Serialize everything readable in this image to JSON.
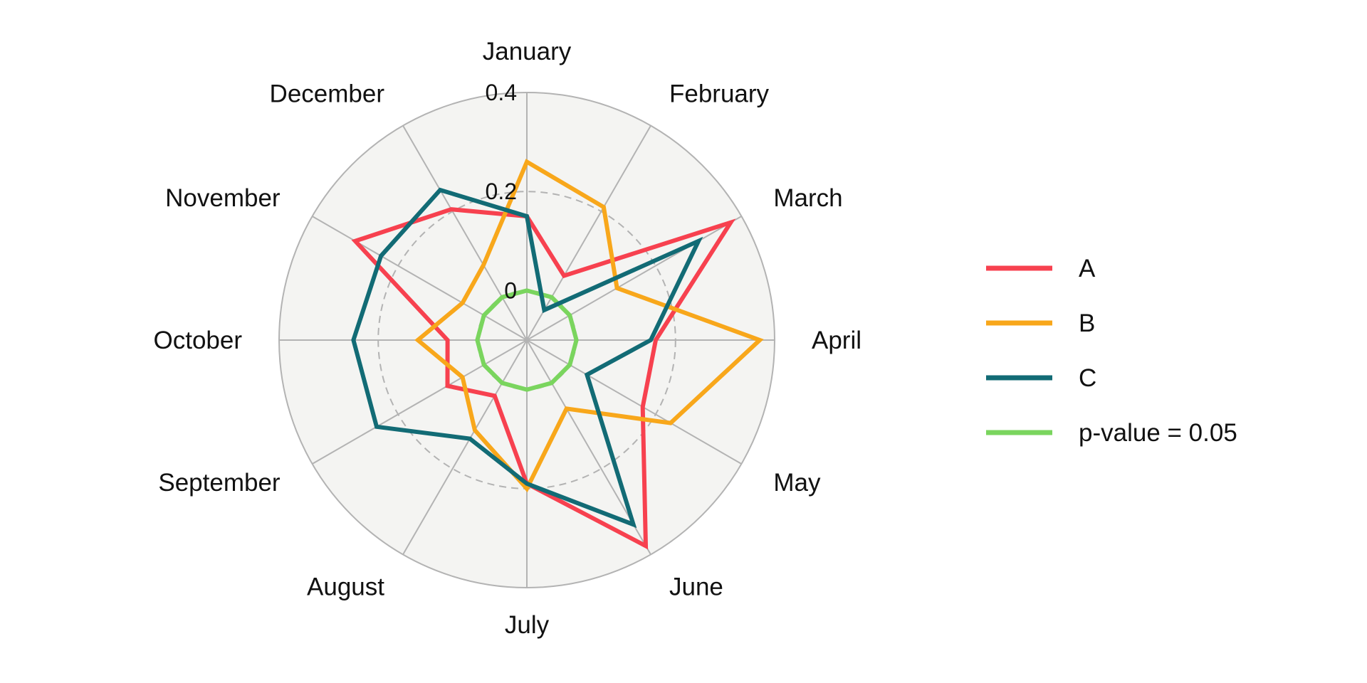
{
  "chart_data": {
    "type": "radar",
    "categories": [
      "January",
      "February",
      "March",
      "April",
      "May",
      "June",
      "July",
      "August",
      "September",
      "October",
      "November",
      "December"
    ],
    "radial_range": [
      -0.1,
      0.4
    ],
    "radial_ticks": [
      {
        "value": 0,
        "label": "0"
      },
      {
        "value": 0.2,
        "label": "0.2"
      },
      {
        "value": 0.4,
        "label": "0.4"
      }
    ],
    "series": [
      {
        "name": "A",
        "color": "#f7414f",
        "values": [
          0.15,
          0.05,
          0.375,
          0.16,
          0.17,
          0.38,
          0.19,
          0.03,
          0.085,
          0.06,
          0.3,
          0.205
        ]
      },
      {
        "name": "B",
        "color": "#f8a71b",
        "values": [
          0.26,
          0.21,
          0.11,
          0.37,
          0.235,
          0.06,
          0.2,
          0.11,
          0.05,
          0.12,
          0.05,
          0.075
        ]
      },
      {
        "name": "C",
        "color": "#126b75",
        "values": [
          0.15,
          -0.03,
          0.3,
          0.15,
          0.04,
          0.33,
          0.19,
          0.13,
          0.25,
          0.25,
          0.24,
          0.25
        ]
      },
      {
        "name": "p-value = 0.05",
        "color": "#7ad55e",
        "values": [
          0.0,
          0.0,
          0.0,
          0.0,
          0.0,
          0.0,
          0.0,
          0.0,
          0.0,
          0.0,
          0.0,
          0.0
        ]
      }
    ],
    "grid": true,
    "legend_position": "right",
    "background_color": "#f4f4f2",
    "grid_color": "#b3b3b3"
  }
}
